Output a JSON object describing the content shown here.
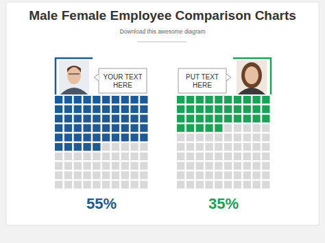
{
  "chart_data": {
    "type": "waffle",
    "title": "Male Female Employee Comparison Charts",
    "subtitle": "Download this awesome diagram",
    "categories": [
      "YOUR TEXT HERE",
      "PUT TEXT HERE"
    ],
    "values": [
      55,
      35
    ],
    "value_labels": [
      "55%",
      "35%"
    ],
    "colors": [
      "#1e5a96",
      "#1aa357"
    ],
    "ylim": [
      0,
      100
    ],
    "data_labels": true
  }
}
